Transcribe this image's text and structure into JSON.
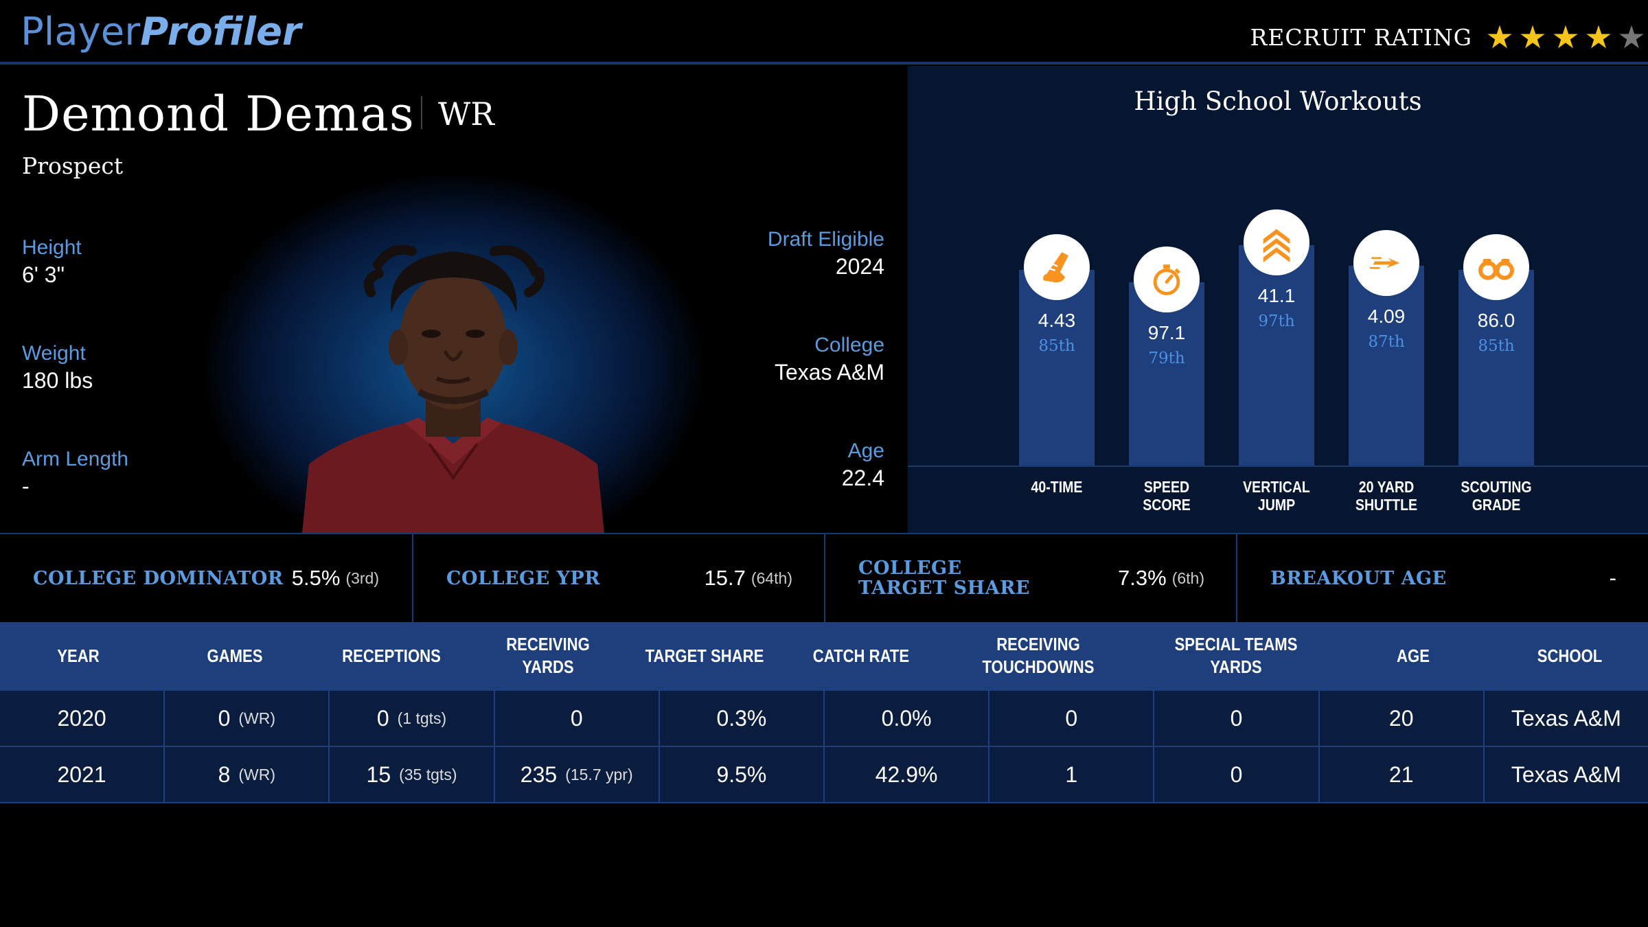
{
  "header": {
    "logo_part1": "Player",
    "logo_part2": "Profiler",
    "rating_label": "RECRUIT RATING",
    "stars_filled": 4,
    "stars_total": 5
  },
  "player": {
    "name": "Demond Demas",
    "position": "WR",
    "status": "Prospect",
    "height_label": "Height",
    "height": "6' 3\"",
    "weight_label": "Weight",
    "weight": "180 lbs",
    "arm_label": "Arm Length",
    "arm": "-",
    "draft_label": "Draft Eligible",
    "draft": "2024",
    "college_label": "College",
    "college": "Texas A&M",
    "age_label": "Age",
    "age": "22.4"
  },
  "workouts": {
    "title": "High School Workouts",
    "items": [
      {
        "value": "4.43",
        "pct": "85th",
        "label_1": "40-TIME",
        "label_2": "",
        "icon": "running-shoe-icon",
        "percentile": 85
      },
      {
        "value": "97.1",
        "pct": "79th",
        "label_1": "SPEED",
        "label_2": "SCORE",
        "icon": "stopwatch-icon",
        "percentile": 79
      },
      {
        "value": "41.1",
        "pct": "97th",
        "label_1": "VERTICAL",
        "label_2": "JUMP",
        "icon": "chevrons-up-icon",
        "percentile": 97
      },
      {
        "value": "4.09",
        "pct": "87th",
        "label_1": "20 YARD",
        "label_2": "SHUTTLE",
        "icon": "lightning-icon",
        "percentile": 87
      },
      {
        "value": "86.0",
        "pct": "85th",
        "label_1": "SCOUTING",
        "label_2": "GRADE",
        "icon": "binoculars-icon",
        "percentile": 85
      }
    ]
  },
  "metrics": [
    {
      "label": "COLLEGE DOMINATOR",
      "value": "5.5%",
      "rank": "(3rd)"
    },
    {
      "label": "COLLEGE YPR",
      "value": "15.7",
      "rank": "(64th)"
    },
    {
      "label": "COLLEGE TARGET SHARE",
      "value": "7.3%",
      "rank": "(6th)"
    },
    {
      "label": "BREAKOUT AGE",
      "value": "-",
      "rank": ""
    }
  ],
  "table": {
    "headers": [
      "YEAR",
      "GAMES",
      "RECEPTIONS",
      "RECEIVING YARDS",
      "TARGET SHARE",
      "CATCH RATE",
      "RECEIVING TOUCHDOWNS",
      "SPECIAL TEAMS YARDS",
      "AGE",
      "SCHOOL"
    ],
    "rows": [
      {
        "year": "2020",
        "games": "0",
        "games_sub": "(WR)",
        "rec": "0",
        "rec_sub": "(1 tgts)",
        "yds": "0",
        "yds_sub": "",
        "ts": "0.3%",
        "cr": "0.0%",
        "td": "0",
        "st": "0",
        "age": "20",
        "school": "Texas A&M"
      },
      {
        "year": "2021",
        "games": "8",
        "games_sub": "(WR)",
        "rec": "15",
        "rec_sub": "(35 tgts)",
        "yds": "235",
        "yds_sub": "(15.7 ypr)",
        "ts": "9.5%",
        "cr": "42.9%",
        "td": "1",
        "st": "0",
        "age": "21",
        "school": "Texas A&M"
      }
    ]
  },
  "colors": {
    "accent": "#5b9be0",
    "bar": "#1e3f7c",
    "icon": "#f7931e",
    "star": "#f5c518"
  }
}
